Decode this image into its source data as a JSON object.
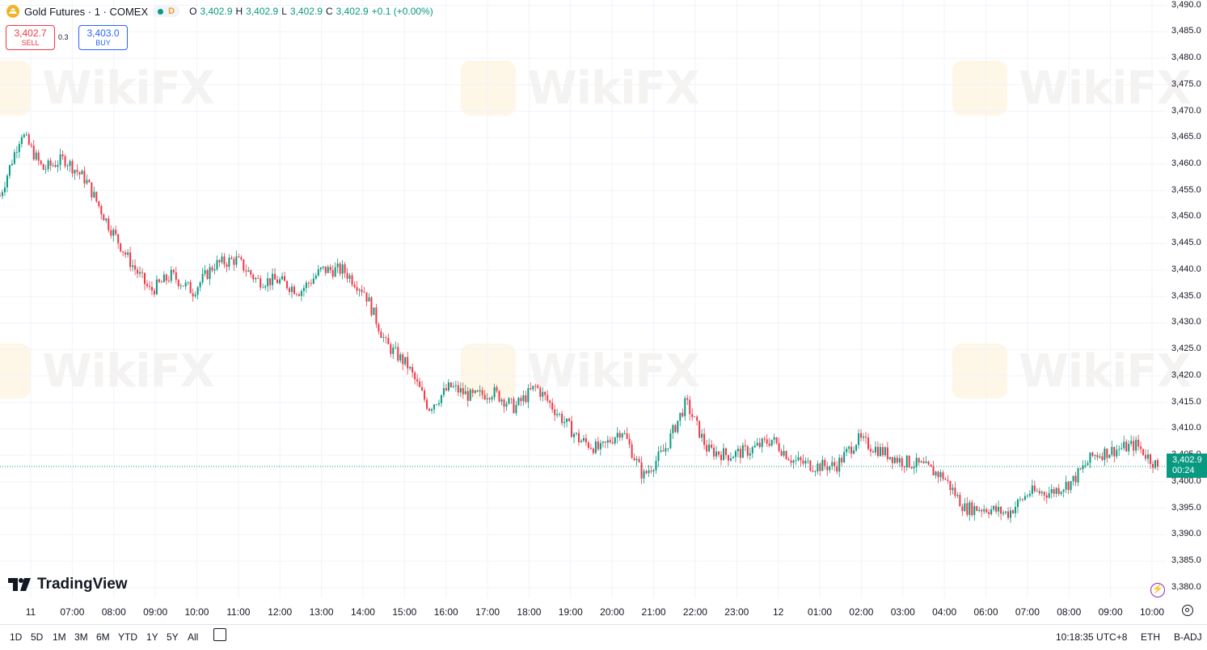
{
  "legend": {
    "symbol": "Gold Futures · 1 · COMEX",
    "interval_badge": "D",
    "ohlc": [
      {
        "k": "O",
        "v": "3,402.9"
      },
      {
        "k": "H",
        "v": "3,402.9"
      },
      {
        "k": "L",
        "v": "3,402.9"
      },
      {
        "k": "C",
        "v": "3,402.9"
      }
    ],
    "change": "+0.1 (+0.00%)"
  },
  "trade": {
    "sell_price": "3,402.7",
    "sell_label": "SELL",
    "spread": "0.3",
    "buy_price": "3,403.0",
    "buy_label": "BUY"
  },
  "logo_text": "TradingView",
  "watermark_text": "WikiFX",
  "current_price": {
    "value": "3,402.9",
    "countdown": "00:24"
  },
  "bottom_bar": {
    "ranges": [
      "1D",
      "5D",
      "1M",
      "3M",
      "6M",
      "YTD",
      "1Y",
      "5Y",
      "All"
    ],
    "clock": "10:18:35 UTC+8",
    "session": "ETH",
    "adjust": "B-ADJ"
  },
  "colors": {
    "up": "#089981",
    "down": "#f23645",
    "grid": "#f0f3fa"
  },
  "chart_data": {
    "type": "candlestick",
    "y_ticks": [
      "3,490.0",
      "3,485.0",
      "3,480.0",
      "3,475.0",
      "3,470.0",
      "3,465.0",
      "3,460.0",
      "3,455.0",
      "3,450.0",
      "3,445.0",
      "3,440.0",
      "3,435.0",
      "3,430.0",
      "3,425.0",
      "3,420.0",
      "3,415.0",
      "3,410.0",
      "3,405.0",
      "3,400.0",
      "3,395.0",
      "3,390.0",
      "3,385.0",
      "3,380.0"
    ],
    "ylim": [
      3378,
      3491
    ],
    "x_ticks": [
      "11",
      "07:00",
      "08:00",
      "09:00",
      "10:00",
      "11:00",
      "12:00",
      "13:00",
      "14:00",
      "15:00",
      "16:00",
      "17:00",
      "18:00",
      "19:00",
      "20:00",
      "21:00",
      "22:00",
      "23:00",
      "12",
      "01:00",
      "02:00",
      "03:00",
      "04:00",
      "06:00",
      "07:00",
      "08:00",
      "09:00",
      "10:00"
    ],
    "series": [
      {
        "values": [
          {
            "x": "11",
            "y": 3454
          },
          {
            "x": "",
            "y": 3466
          },
          {
            "x": "07:00",
            "y": 3459
          },
          {
            "x": "",
            "y": 3461
          },
          {
            "x": "08:00",
            "y": 3457
          },
          {
            "x": "",
            "y": 3449
          },
          {
            "x": "09:00",
            "y": 3442
          },
          {
            "x": "",
            "y": 3436
          },
          {
            "x": "10:00",
            "y": 3439
          },
          {
            "x": "",
            "y": 3436
          },
          {
            "x": "11:00",
            "y": 3441
          },
          {
            "x": "",
            "y": 3442
          },
          {
            "x": "12:00",
            "y": 3438
          },
          {
            "x": "",
            "y": 3438
          },
          {
            "x": "13:00",
            "y": 3436
          },
          {
            "x": "",
            "y": 3440
          },
          {
            "x": "14:00",
            "y": 3440
          },
          {
            "x": "",
            "y": 3436
          },
          {
            "x": "15:00",
            "y": 3426
          },
          {
            "x": "",
            "y": 3422
          },
          {
            "x": "16:00",
            "y": 3414
          },
          {
            "x": "",
            "y": 3418
          },
          {
            "x": "17:00",
            "y": 3416
          },
          {
            "x": "",
            "y": 3417
          },
          {
            "x": "18:00",
            "y": 3414
          },
          {
            "x": "",
            "y": 3418
          },
          {
            "x": "19:00",
            "y": 3413
          },
          {
            "x": "",
            "y": 3408
          },
          {
            "x": "20:00",
            "y": 3406
          },
          {
            "x": "",
            "y": 3410
          },
          {
            "x": "21:00",
            "y": 3401
          },
          {
            "x": "",
            "y": 3406
          },
          {
            "x": "22:00",
            "y": 3415
          },
          {
            "x": "",
            "y": 3406
          },
          {
            "x": "23:00",
            "y": 3405
          },
          {
            "x": "",
            "y": 3406
          },
          {
            "x": "12",
            "y": 3408
          },
          {
            "x": "",
            "y": 3404
          },
          {
            "x": "01:00",
            "y": 3403
          },
          {
            "x": "",
            "y": 3403
          },
          {
            "x": "02:00",
            "y": 3408
          },
          {
            "x": "",
            "y": 3406
          },
          {
            "x": "03:00",
            "y": 3404
          },
          {
            "x": "",
            "y": 3403
          },
          {
            "x": "04:00",
            "y": 3401
          },
          {
            "x": "",
            "y": 3395
          },
          {
            "x": "06:00",
            "y": 3395
          },
          {
            "x": "",
            "y": 3394
          },
          {
            "x": "07:00",
            "y": 3398
          },
          {
            "x": "",
            "y": 3398
          },
          {
            "x": "08:00",
            "y": 3400
          },
          {
            "x": "",
            "y": 3405
          },
          {
            "x": "09:00",
            "y": 3406
          },
          {
            "x": "",
            "y": 3407
          },
          {
            "x": "10:00",
            "y": 3402.9
          }
        ]
      }
    ],
    "last_price": 3402.9,
    "grid": true
  }
}
